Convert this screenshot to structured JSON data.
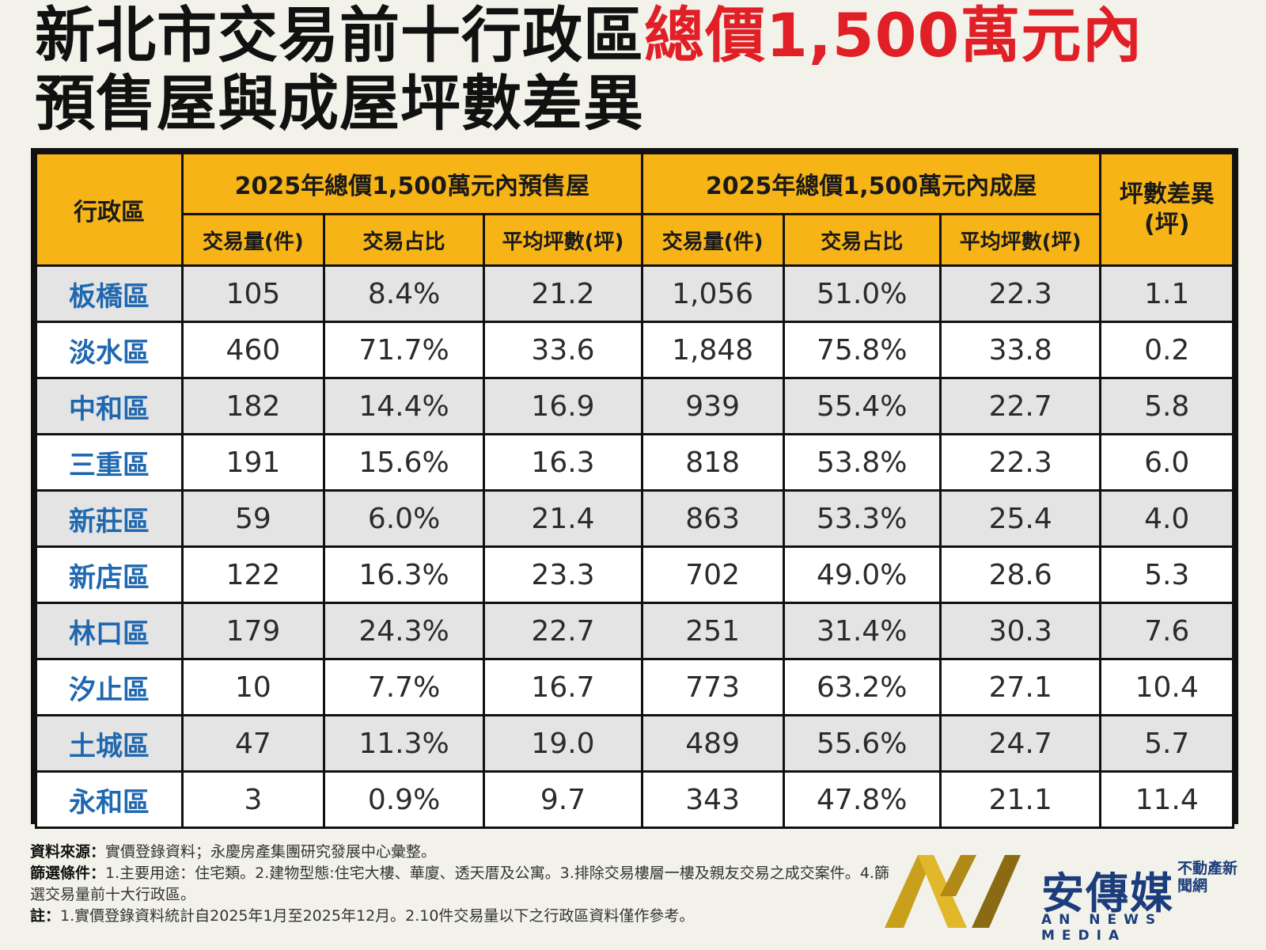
{
  "title": {
    "line1_black": "新北市交易前十行政區",
    "line1_red": "總價1,500萬元內",
    "line2": "預售屋與成屋坪數差異"
  },
  "colors": {
    "header_bg": "#f7b417",
    "title_red": "#e01f26",
    "district_blue": "#1f68b0",
    "row_gray": "#e4e4e4",
    "row_white": "#ffffff"
  },
  "table": {
    "headers": {
      "district": "行政區",
      "presale_group": "2025年總價1,500萬元內預售屋",
      "existing_group": "2025年總價1,500萬元內成屋",
      "diff": "坪數差異(坪)",
      "volume": "交易量(件)",
      "share": "交易占比",
      "avg_size": "平均坪數(坪)"
    },
    "rows": [
      {
        "district": "板橋區",
        "pre_vol": "105",
        "pre_share": "8.4%",
        "pre_avg": "21.2",
        "ex_vol": "1,056",
        "ex_share": "51.0%",
        "ex_avg": "22.3",
        "diff": "1.1"
      },
      {
        "district": "淡水區",
        "pre_vol": "460",
        "pre_share": "71.7%",
        "pre_avg": "33.6",
        "ex_vol": "1,848",
        "ex_share": "75.8%",
        "ex_avg": "33.8",
        "diff": "0.2"
      },
      {
        "district": "中和區",
        "pre_vol": "182",
        "pre_share": "14.4%",
        "pre_avg": "16.9",
        "ex_vol": "939",
        "ex_share": "55.4%",
        "ex_avg": "22.7",
        "diff": "5.8"
      },
      {
        "district": "三重區",
        "pre_vol": "191",
        "pre_share": "15.6%",
        "pre_avg": "16.3",
        "ex_vol": "818",
        "ex_share": "53.8%",
        "ex_avg": "22.3",
        "diff": "6.0"
      },
      {
        "district": "新莊區",
        "pre_vol": "59",
        "pre_share": "6.0%",
        "pre_avg": "21.4",
        "ex_vol": "863",
        "ex_share": "53.3%",
        "ex_avg": "25.4",
        "diff": "4.0"
      },
      {
        "district": "新店區",
        "pre_vol": "122",
        "pre_share": "16.3%",
        "pre_avg": "23.3",
        "ex_vol": "702",
        "ex_share": "49.0%",
        "ex_avg": "28.6",
        "diff": "5.3"
      },
      {
        "district": "林口區",
        "pre_vol": "179",
        "pre_share": "24.3%",
        "pre_avg": "22.7",
        "ex_vol": "251",
        "ex_share": "31.4%",
        "ex_avg": "30.3",
        "diff": "7.6"
      },
      {
        "district": "汐止區",
        "pre_vol": "10",
        "pre_share": "7.7%",
        "pre_avg": "16.7",
        "ex_vol": "773",
        "ex_share": "63.2%",
        "ex_avg": "27.1",
        "diff": "10.4"
      },
      {
        "district": "土城區",
        "pre_vol": "47",
        "pre_share": "11.3%",
        "pre_avg": "19.0",
        "ex_vol": "489",
        "ex_share": "55.6%",
        "ex_avg": "24.7",
        "diff": "5.7"
      },
      {
        "district": "永和區",
        "pre_vol": "3",
        "pre_share": "0.9%",
        "pre_avg": "9.7",
        "ex_vol": "343",
        "ex_share": "47.8%",
        "ex_avg": "21.1",
        "diff": "11.4"
      }
    ]
  },
  "footer": {
    "source_label": "資料來源：",
    "source_text": "實價登錄資料；永慶房產集團研究發展中心彙整。",
    "filter_label": "篩選條件：",
    "filter_text": "1.主要用途：住宅類。2.建物型態:住宅大樓、華廈、透天厝及公寓。3.排除交易樓層一樓及親友交易之成交案件。4.篩選交易量前十大行政區。",
    "note_label": "註：",
    "note_text": "1.實價登錄資料統計自2025年1月至2025年12月。2.10件交易量以下之行政區資料僅作參考。"
  },
  "logo": {
    "name": "安傳媒",
    "sub": "不動產新聞網",
    "en": "AN NEWS MEDIA",
    "icon": "an-news-logo-icon"
  }
}
